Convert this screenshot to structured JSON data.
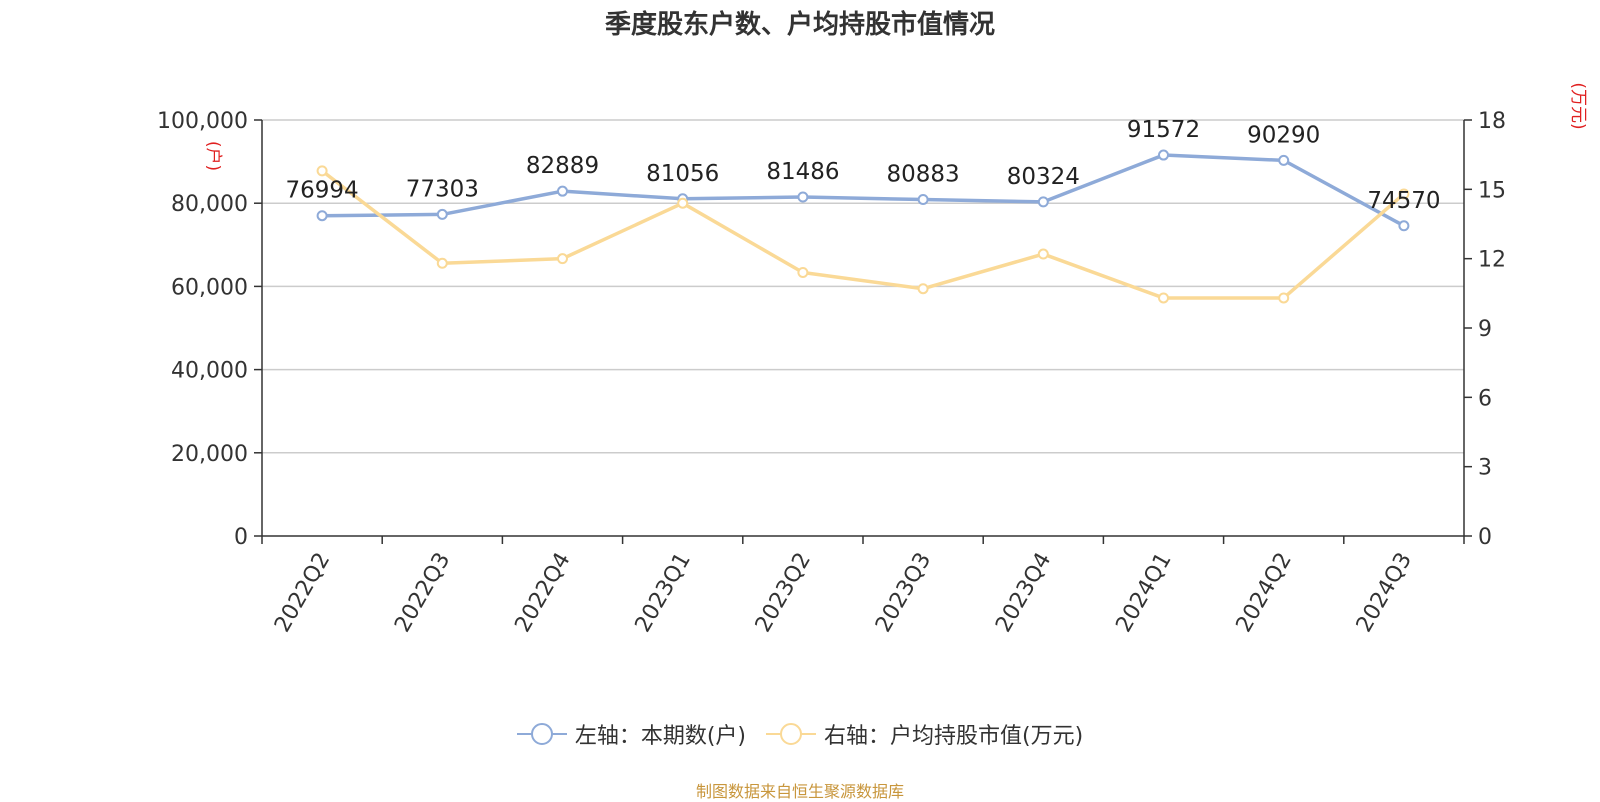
{
  "chart_data": {
    "type": "line",
    "title": "季度股东户数、户均持股市值情况",
    "categories": [
      "2022Q2",
      "2022Q3",
      "2022Q4",
      "2023Q1",
      "2023Q2",
      "2023Q3",
      "2023Q4",
      "2024Q1",
      "2024Q2",
      "2024Q3"
    ],
    "y_left": {
      "unit": "(户)",
      "ylim": [
        0,
        100000
      ],
      "ticks": [
        "0",
        "20,000",
        "40,000",
        "60,000",
        "80,000",
        "100,000"
      ],
      "tick_values": [
        0,
        20000,
        40000,
        60000,
        80000,
        100000
      ]
    },
    "y_right": {
      "unit": "(万元)",
      "ylim": [
        0,
        18
      ],
      "ticks": [
        "0",
        "3",
        "6",
        "9",
        "12",
        "15",
        "18"
      ],
      "tick_values": [
        0,
        3,
        6,
        9,
        12,
        15,
        18
      ]
    },
    "series": [
      {
        "name": "左轴：本期数(户)",
        "axis": "left",
        "color": "#8eaad8",
        "values": [
          76994,
          77303,
          82889,
          81056,
          81486,
          80883,
          80324,
          91572,
          90290,
          74570
        ],
        "labels": [
          "76994",
          "77303",
          "82889",
          "81056",
          "81486",
          "80883",
          "80324",
          "91572",
          "90290",
          "74570"
        ]
      },
      {
        "name": "右轴：户均持股市值(万元)",
        "axis": "right",
        "color": "#fad996",
        "values": [
          15.8,
          11.8,
          12.0,
          14.4,
          11.4,
          10.7,
          12.2,
          10.3,
          10.3,
          14.8
        ]
      }
    ],
    "grid": true,
    "legend": "bottom-center"
  },
  "source_text": "制图数据来自恒生聚源数据库"
}
